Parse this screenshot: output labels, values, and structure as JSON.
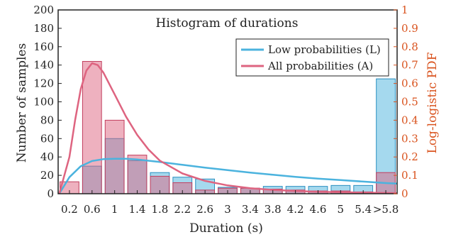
{
  "chart_data": {
    "type": "bar",
    "title": "Histogram of durations",
    "xlabel": "Duration (s)",
    "ylabel": "Number of samples",
    "y2label": "Log-logistic PDF",
    "ylim": [
      0,
      200
    ],
    "y2lim": [
      0,
      1
    ],
    "yticks": [
      "0",
      "20",
      "40",
      "60",
      "80",
      "100",
      "120",
      "140",
      "160",
      "180",
      "200"
    ],
    "y2ticks": [
      "0",
      "0.1",
      "0.2",
      "0.3",
      "0.4",
      "0.5",
      "0.6",
      "0.7",
      "0.8",
      "0.9",
      "1"
    ],
    "categories": [
      "0.2",
      "0.6",
      "1",
      "1.4",
      "1.8",
      "2.2",
      "2.6",
      "3",
      "3.4",
      "3.8",
      "4.2",
      "4.6",
      "5",
      "5.4",
      ">5.8"
    ],
    "series": [
      {
        "name": "Low probabilities (L)",
        "values": [
          0,
          30,
          60,
          36,
          23,
          18,
          16,
          7,
          6,
          8,
          8,
          8,
          9,
          9,
          125
        ]
      },
      {
        "name": "All probabilities (A)",
        "values": [
          13,
          144,
          80,
          42,
          19,
          12,
          4,
          6,
          6,
          5,
          4,
          3,
          3,
          2,
          23
        ]
      }
    ],
    "curves": [
      {
        "series": "Low probabilities (L)",
        "x": [
          0.02,
          0.2,
          0.4,
          0.6,
          0.8,
          1.0,
          1.2,
          1.4,
          1.8,
          2.2,
          2.6,
          3.0,
          3.4,
          3.8,
          4.2,
          4.6,
          5.0,
          5.4,
          5.8,
          6.0
        ],
        "pdf": [
          0.0,
          0.09,
          0.15,
          0.178,
          0.188,
          0.19,
          0.19,
          0.186,
          0.173,
          0.157,
          0.142,
          0.128,
          0.115,
          0.103,
          0.092,
          0.082,
          0.074,
          0.066,
          0.058,
          0.055
        ]
      },
      {
        "series": "All probabilities (A)",
        "x": [
          0.02,
          0.2,
          0.3,
          0.4,
          0.5,
          0.6,
          0.7,
          0.8,
          0.9,
          1.0,
          1.2,
          1.4,
          1.6,
          1.8,
          2.2,
          2.6,
          3.0,
          3.4,
          3.8,
          4.2,
          4.6,
          5.0,
          5.4,
          5.8,
          6.0
        ],
        "pdf": [
          0.0,
          0.2,
          0.4,
          0.57,
          0.67,
          0.71,
          0.7,
          0.66,
          0.6,
          0.54,
          0.42,
          0.32,
          0.24,
          0.18,
          0.11,
          0.07,
          0.045,
          0.03,
          0.021,
          0.015,
          0.011,
          0.008,
          0.006,
          0.004,
          0.003
        ]
      }
    ],
    "legend_placement": "top-right",
    "colors": {
      "low": "#4bb3de",
      "all": "#de6480",
      "right_axis": "#d9531e"
    },
    "grid": false
  }
}
